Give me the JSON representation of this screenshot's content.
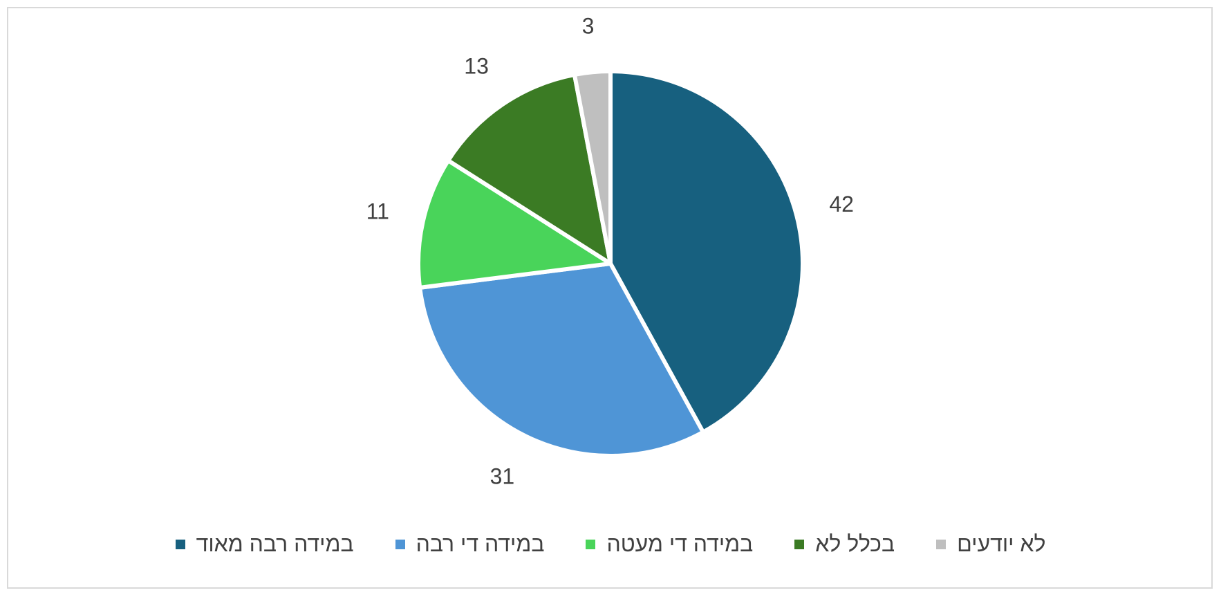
{
  "chart_data": {
    "type": "pie",
    "title": "",
    "categories": [
      "במידה רבה מאוד",
      "במידה די רבה",
      "במידה די מעטה",
      "בכלל לא",
      "לא יודעים"
    ],
    "values": [
      42,
      31,
      11,
      13,
      3
    ],
    "colors": [
      "#17607f",
      "#4f95d6",
      "#49d45a",
      "#3b7b24",
      "#bfbfbf"
    ],
    "data_labels": [
      "42",
      "31",
      "11",
      "13",
      "3"
    ],
    "legend_position": "bottom",
    "start_angle_deg": 0,
    "direction": "clockwise"
  }
}
